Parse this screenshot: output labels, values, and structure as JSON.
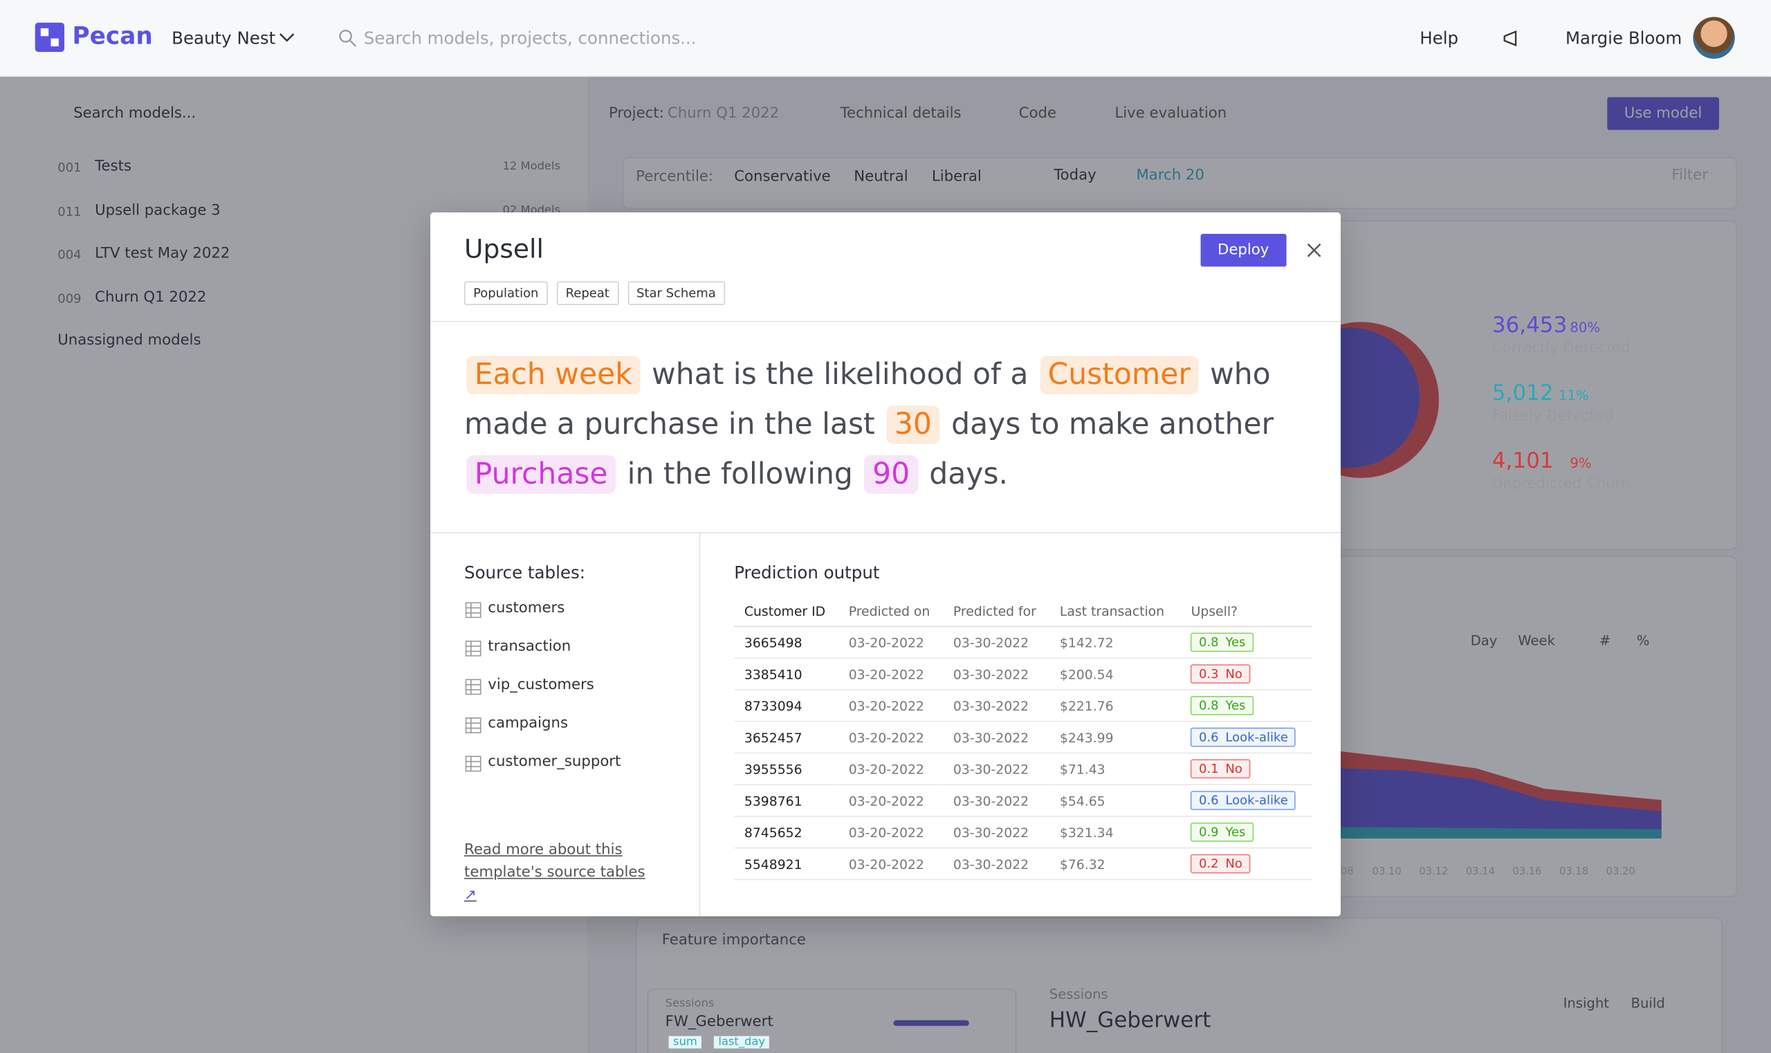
{
  "header": {
    "logo": "Pecan",
    "workspace": "Beauty Nest",
    "search": "Search models, projects, connections...",
    "help": "Help",
    "user": "Margie Bloom"
  },
  "sidebar": {
    "search": "Search models...",
    "projects": [
      {
        "id": "001",
        "name": "Tests",
        "count": "12 Models"
      },
      {
        "id": "011",
        "name": "Upsell package 3",
        "count": "02 Models"
      },
      {
        "id": "004",
        "name": "LTV test May 2022"
      },
      {
        "id": "009",
        "name": "Churn Q1 2022"
      }
    ],
    "unassigned": "Unassigned models"
  },
  "toolbar": {
    "project_label": "Project:",
    "project": "Churn Q1 2022",
    "tabs": [
      "Technical details",
      "Code",
      "Live evaluation"
    ],
    "use_model": "Use model"
  },
  "filters": {
    "percentile_label": "Percentile:",
    "options": [
      "Conservative",
      "Neutral",
      "Liberal"
    ],
    "today": "Today",
    "date": "March 20",
    "filter": "Filter"
  },
  "stats": [
    {
      "value": "36,453",
      "pct": "80%",
      "label": "Correctly Detected",
      "color": "#5a4fd0"
    },
    {
      "value": "5,012",
      "pct": "11%",
      "label": "Falsely Detected",
      "color": "#2aa9b8"
    },
    {
      "value": "4,101",
      "pct": "9%",
      "label": "Unpredicted Churn",
      "color": "#d23c3c"
    }
  ],
  "chart_controls": [
    "Day",
    "Week",
    "#",
    "%"
  ],
  "chart_dates": [
    "08",
    "03.10",
    "03.12",
    "03.14",
    "03.16",
    "03.18",
    "03.20"
  ],
  "features": {
    "title": "Feature importance",
    "card_kicker": "Sessions",
    "card_name": "FW_Geberwert",
    "card_tags": [
      "sum",
      "last_day"
    ],
    "detail_kicker": "Sessions",
    "detail_name": "HW_Geberwert",
    "buttons": [
      "Insight",
      "Build"
    ]
  },
  "modal": {
    "title": "Upsell",
    "tags": [
      "Population",
      "Repeat",
      "Star Schema"
    ],
    "deploy": "Deploy",
    "sentence": [
      {
        "text": "Each week",
        "highlight": "orange"
      },
      {
        "text": "what is the likelihood of a"
      },
      {
        "text": "Customer",
        "highlight": "orange"
      },
      {
        "text": "who made a purchase in the last"
      },
      {
        "text": "30",
        "highlight": "orange"
      },
      {
        "text": "days to make another"
      },
      {
        "text": "Purchase",
        "highlight": "purple"
      },
      {
        "text": "in the following"
      },
      {
        "text": "90",
        "highlight": "purple"
      },
      {
        "text": "days."
      }
    ],
    "source_title": "Source tables:",
    "source_tables": [
      "customers",
      "transaction",
      "vip_customers",
      "campaigns",
      "customer_support"
    ],
    "source_link": "Read more about this template's source tables",
    "output_title": "Prediction output",
    "columns": [
      "Customer ID",
      "Predicted on",
      "Predicted for",
      "Last transaction",
      "Upsell?"
    ],
    "rows": [
      {
        "id": "3665498",
        "on": "03-20-2022",
        "for": "03-30-2022",
        "last": "$142.72",
        "score": "0.8",
        "label": "Yes",
        "tone": "green"
      },
      {
        "id": "3385410",
        "on": "03-20-2022",
        "for": "03-30-2022",
        "last": "$200.54",
        "score": "0.3",
        "label": "No",
        "tone": "red"
      },
      {
        "id": "8733094",
        "on": "03-20-2022",
        "for": "03-30-2022",
        "last": "$221.76",
        "score": "0.8",
        "label": "Yes",
        "tone": "green"
      },
      {
        "id": "3652457",
        "on": "03-20-2022",
        "for": "03-30-2022",
        "last": "$243.99",
        "score": "0.6",
        "label": "Look-alike",
        "tone": "blue"
      },
      {
        "id": "3955556",
        "on": "03-20-2022",
        "for": "03-30-2022",
        "last": "$71.43",
        "score": "0.1",
        "label": "No",
        "tone": "red"
      },
      {
        "id": "5398761",
        "on": "03-20-2022",
        "for": "03-30-2022",
        "last": "$54.65",
        "score": "0.6",
        "label": "Look-alike",
        "tone": "blue"
      },
      {
        "id": "8745652",
        "on": "03-20-2022",
        "for": "03-30-2022",
        "last": "$321.34",
        "score": "0.9",
        "label": "Yes",
        "tone": "green"
      },
      {
        "id": "5548921",
        "on": "03-20-2022",
        "for": "03-30-2022",
        "last": "$76.32",
        "score": "0.2",
        "label": "No",
        "tone": "red"
      }
    ]
  }
}
